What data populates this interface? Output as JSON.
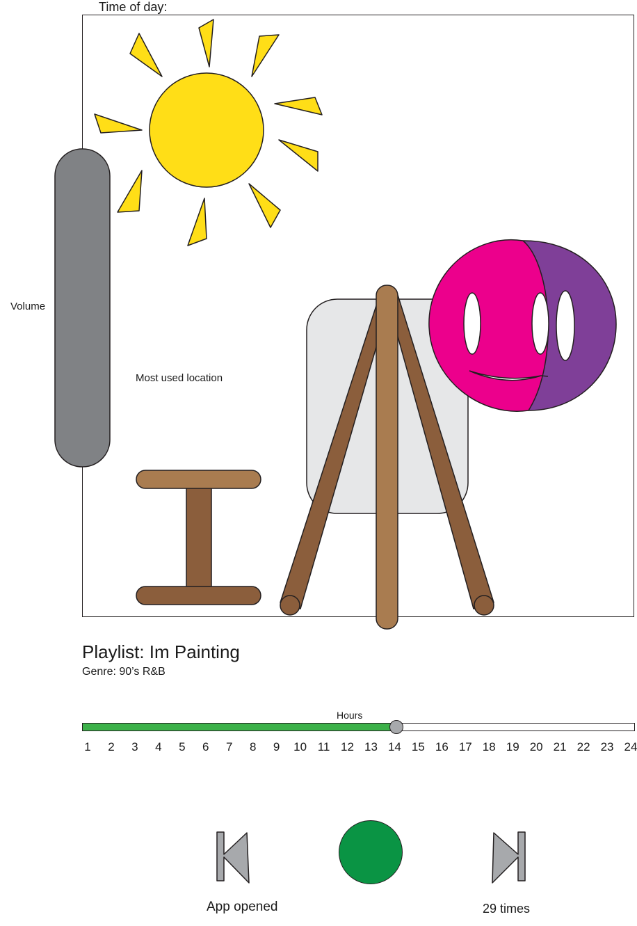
{
  "header": {
    "time_of_day_label": "Time of day:"
  },
  "scene": {
    "volume_label": "Volume",
    "most_used_location_label": "Most used location",
    "colors": {
      "sun": "#ffde17",
      "volume_slider": "#808285",
      "canvas": "#e6e7e8",
      "wood_light": "#a97c50",
      "wood_dark": "#8b5e3c",
      "mask_pink": "#ec008c",
      "mask_purple": "#7f3f98"
    },
    "icons": [
      "sun-icon",
      "stool-icon",
      "easel-icon",
      "theater-mask-icon"
    ]
  },
  "playlist": {
    "title": "Playlist: Im Painting",
    "genre": "Genre: 90’s R&B"
  },
  "timeline": {
    "label": "Hours",
    "hours": [
      "1",
      "2",
      "3",
      "4",
      "5",
      "6",
      "7",
      "8",
      "9",
      "10",
      "11",
      "12",
      "13",
      "14",
      "15",
      "16",
      "17",
      "18",
      "19",
      "20",
      "21",
      "22",
      "23",
      "24"
    ],
    "current_hour": 14,
    "fill_color": "#3cb149"
  },
  "controls": {
    "prev_icon": "skip-back-icon",
    "play_icon": "play-circle-icon",
    "next_icon": "skip-forward-icon",
    "play_color": "#0a9444"
  },
  "stats": {
    "app_opened_label": "App opened",
    "times_label": "29 times"
  }
}
